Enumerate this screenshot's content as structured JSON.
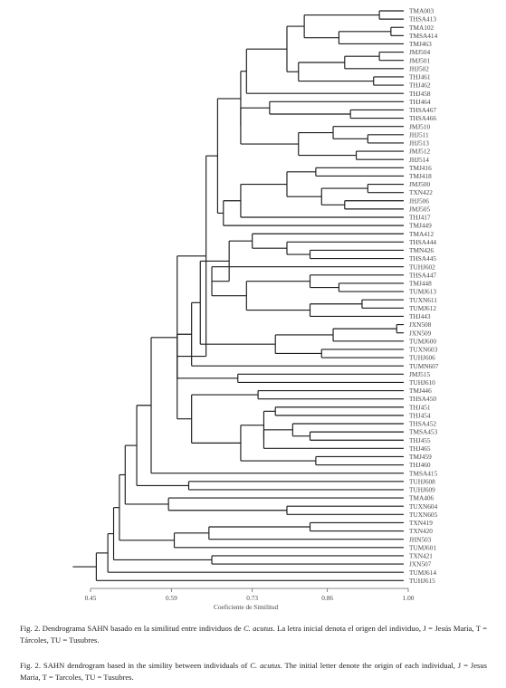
{
  "chart_data": {
    "type": "dendrogram",
    "xlabel": "Coeficiente de Similitud",
    "ticks": [
      "0.45",
      "0.59",
      "0.73",
      "0.86",
      "1.00"
    ],
    "xlim": [
      0.45,
      1.0
    ],
    "leaves": [
      "TMA003",
      "THSA413",
      "TMA102",
      "TMSA414",
      "TMJ463",
      "JMJ504",
      "JMJ501",
      "JHJ502",
      "THJ461",
      "THJ462",
      "THJ458",
      "THJ464",
      "THSA467",
      "THSA466",
      "JMJ510",
      "JHJ511",
      "JHJ513",
      "JMJ512",
      "JHJ514",
      "TMJ416",
      "TMJ418",
      "JMJ500",
      "TXN422",
      "JHJ506",
      "JMJ505",
      "THJ417",
      "TMJ449",
      "TMA412",
      "THSA444",
      "TMN426",
      "THSA445",
      "TUHJ602",
      "THSA447",
      "TMJ448",
      "TUMJ613",
      "TUXN611",
      "TUMJ612",
      "THJ443",
      "JXN508",
      "JXN509",
      "TUMJ600",
      "TUXN603",
      "TUHJ606",
      "TUMN607",
      "JMJ515",
      "TUHJ610",
      "TMJ446",
      "THSA450",
      "THJ451",
      "THJ454",
      "THSA452",
      "TMSA453",
      "THJ455",
      "THJ465",
      "TMJ459",
      "THJ460",
      "TMSA415",
      "TUHJ608",
      "TUHJ609",
      "TMA406",
      "TUXN604",
      "TUXN605",
      "TXN419",
      "TXN420",
      "JHN503",
      "TUMJ601",
      "TXN421",
      "JXN507",
      "TUMJ614",
      "TUHJ615"
    ]
  },
  "caption_es": {
    "label": "Fig. 2. Dendrograma SAHN basado en la similitud entre individuos de ",
    "species": "C. acutus",
    "rest": ". La letra inicial denota el origen del individuo, J = Jesús María, T = Tárcoles, TU = Tusubres."
  },
  "caption_en": {
    "label": "Fig. 2. SAHN dendrogram based in the simility between individuals of ",
    "species": "C. acutus",
    "rest": ". The initial letter denote the origin of each individual, J = Jesus Maria, T = Tarcoles, TU = Tusubres."
  }
}
